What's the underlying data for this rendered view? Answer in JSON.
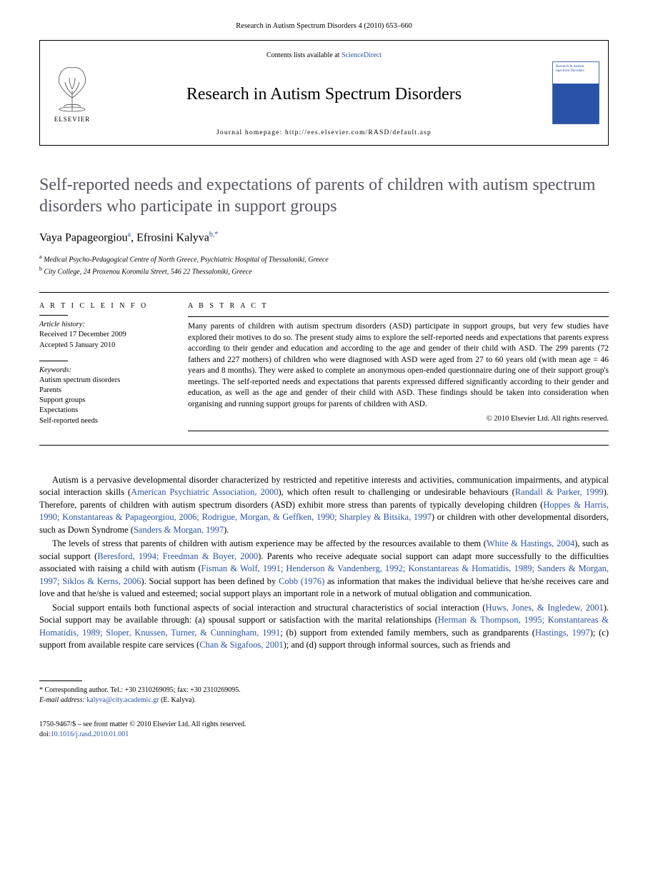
{
  "header_citation": "Research in Autism Spectrum Disorders 4 (2010) 653–660",
  "journal_box": {
    "contents_prefix": "Contents lists available at ",
    "contents_link": "ScienceDirect",
    "journal_name": "Research in Autism Spectrum Disorders",
    "homepage": "Journal homepage: http://ees.elsevier.com/RASD/default.asp",
    "publisher": "ELSEVIER",
    "cover_title": "Research in Autism Spectrum Disorders"
  },
  "article": {
    "title": "Self-reported needs and expectations of parents of children with autism spectrum disorders who participate in support groups",
    "authors_html": "Vaya Papageorgiou|a|, Efrosini Kalyva|b,*",
    "authors": [
      {
        "name": "Vaya Papageorgiou",
        "mark": "a"
      },
      {
        "name": "Efrosini Kalyva",
        "mark": "b,",
        "corr": "*"
      }
    ],
    "affiliations": [
      {
        "mark": "a",
        "text": "Medical Psycho-Pedagogical Centre of North Greece, Psychiatric Hospital of Thessaloniki, Greece"
      },
      {
        "mark": "b",
        "text": "City College, 24 Proxenou Koromila Street, 546 22 Thessaloniki, Greece"
      }
    ]
  },
  "meta": {
    "info_heading": "A R T I C L E  I N F O",
    "history_label": "Article history:",
    "received": "Received 17 December 2009",
    "accepted": "Accepted 5 January 2010",
    "keywords_label": "Keywords:",
    "keywords": [
      "Autism spectrum disorders",
      "Parents",
      "Support groups",
      "Expectations",
      "Self-reported needs"
    ]
  },
  "abstract": {
    "heading": "A B S T R A C T",
    "text": "Many parents of children with autism spectrum disorders (ASD) participate in support groups, but very few studies have explored their motives to do so. The present study aims to explore the self-reported needs and expectations that parents express according to their gender and education and according to the age and gender of their child with ASD. The 299 parents (72 fathers and 227 mothers) of children who were diagnosed with ASD were aged from 27 to 60 years old (with mean age = 46 years and 8 months). They were asked to complete an anonymous open-ended questionnaire during one of their support group's meetings. The self-reported needs and expectations that parents expressed differed significantly according to their gender and education, as well as the age and gender of their child with ASD. These findings should be taken into consideration when organising and running support groups for parents of children with ASD.",
    "copyright": "© 2010 Elsevier Ltd. All rights reserved."
  },
  "body": {
    "p1_parts": [
      "Autism is a pervasive developmental disorder characterized by restricted and repetitive interests and activities, communication impairments, and atypical social interaction skills (",
      "American Psychiatric Association, 2000",
      "), which often result to challenging or undesirable behaviours (",
      "Randall & Parker, 1999",
      "). Therefore, parents of children with autism spectrum disorders (ASD) exhibit more stress than parents of typically developing children (",
      "Hoppes & Harris, 1990; Konstantareas & Papageorgiou, 2006; Rodrigue, Morgan, & Geffken, 1990; Sharpley & Bitsika, 1997",
      ") or children with other developmental disorders, such as Down Syndrome (",
      "Sanders & Morgan, 1997",
      ")."
    ],
    "p2_parts": [
      "The levels of stress that parents of children with autism experience may be affected by the resources available to them (",
      "White & Hastings, 2004",
      "), such as social support (",
      "Beresford, 1994; Freedman & Boyer, 2000",
      "). Parents who receive adequate social support can adapt more successfully to the difficulties associated with raising a child with autism (",
      "Fisman & Wolf, 1991; Henderson & Vandenberg, 1992; Konstantareas & Homatidis, 1989; Sanders & Morgan, 1997; Siklos & Kerns, 2006",
      "). Social support has been defined by ",
      "Cobb (1976)",
      " as information that makes the individual believe that he/she receives care and love and that he/she is valued and esteemed; social support plays an important role in a network of mutual obligation and communication."
    ],
    "p3_parts": [
      "Social support entails both functional aspects of social interaction and structural characteristics of social interaction (",
      "Huws, Jones, & Ingledew, 2001",
      "). Social support may be available through: (a) spousal support or satisfaction with the marital relationships (",
      "Herman & Thompson, 1995; Konstantareas & Homatidis, 1989; Sloper, Knussen, Turner, & Cunningham, 1991",
      "; (b) support from extended family members, such as grandparents (",
      "Hastings, 1997",
      "); (c) support from available respite care services (",
      "Chan & Sigafoos, 2001",
      "); and (d) support through informal sources, such as friends and"
    ]
  },
  "corr": {
    "label": "* Corresponding author. Tel.: +30 2310269095; fax: +30 2310269095.",
    "email_label": "E-mail address:",
    "email": "kalyva@city.academic.gr",
    "email_who": "(E. Kalyva)."
  },
  "footer": {
    "issn_line": "1750-9467/$ – see front matter © 2010 Elsevier Ltd. All rights reserved.",
    "doi_prefix": "doi:",
    "doi": "10.1016/j.rasd.2010.01.001"
  },
  "colors": {
    "link": "#2953a6",
    "title_gray": "#555560"
  }
}
